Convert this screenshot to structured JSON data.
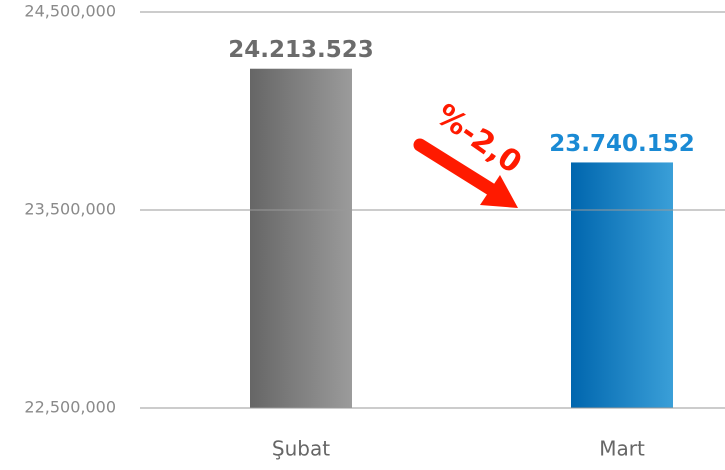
{
  "chart_data": {
    "type": "bar",
    "categories": [
      "Şubat",
      "Mart"
    ],
    "values": [
      24213523,
      23740152
    ],
    "value_labels": [
      "24.213.523",
      "23.740.152"
    ],
    "colors": [
      [
        "#666666",
        "#9b9b9b"
      ],
      [
        "#0066ae",
        "#3a9fd8"
      ]
    ],
    "label_colors": [
      "#6b6b6b",
      "#1a8ad4"
    ],
    "ylim": [
      22500000,
      24500000
    ],
    "yticks": [
      {
        "value": 22500000,
        "label": "22,500,000"
      },
      {
        "value": 23500000,
        "label": "23,500,000"
      },
      {
        "value": 24500000,
        "label": "24,500,000"
      }
    ],
    "grid": true,
    "annotation": "%-2,0"
  }
}
